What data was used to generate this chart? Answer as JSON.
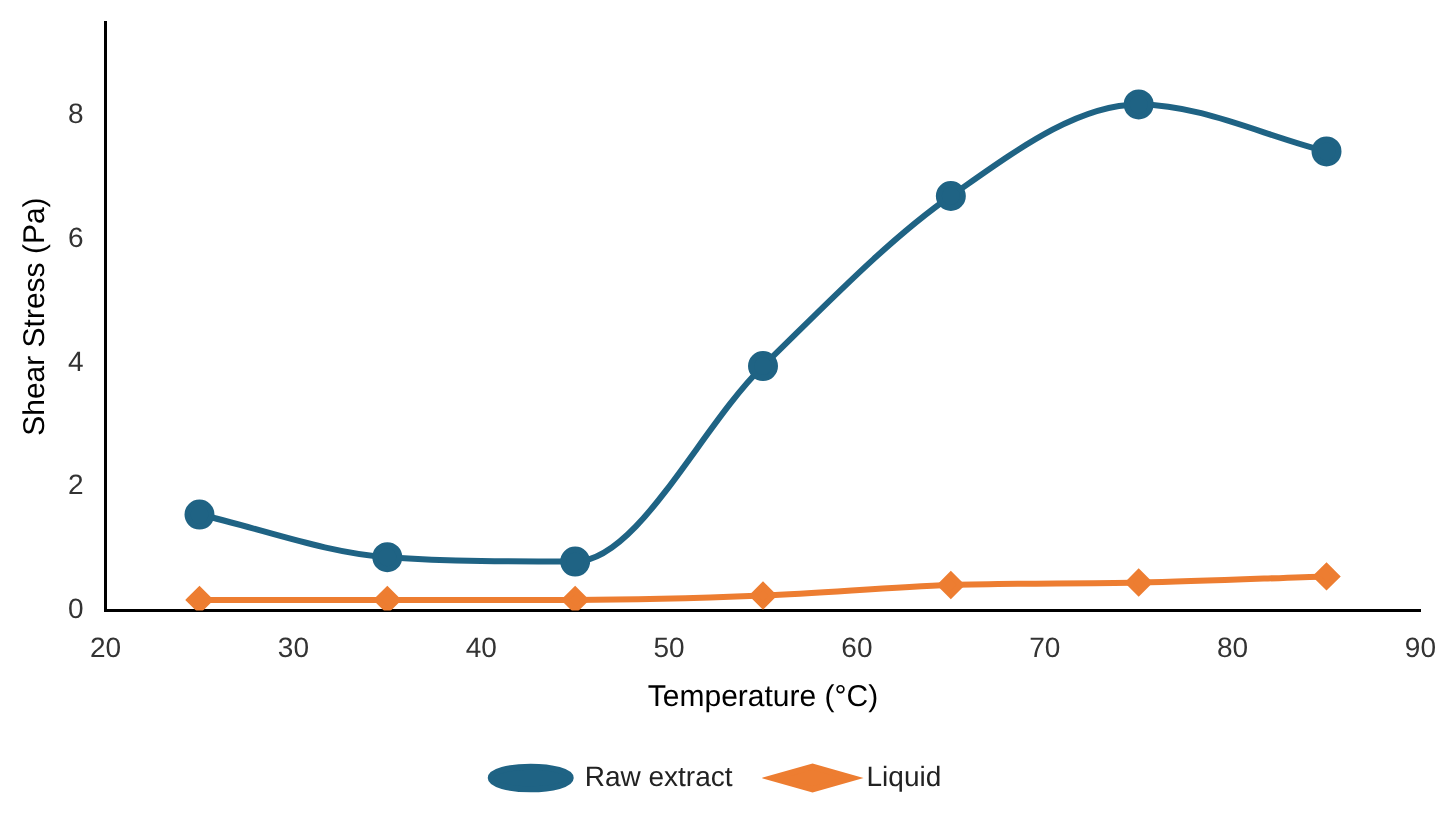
{
  "chart_data": {
    "type": "line",
    "xlabel": "Temperature (°C)",
    "ylabel": "Shear Stress (Pa)",
    "x": [
      25,
      35,
      45,
      55,
      65,
      75,
      85
    ],
    "series": [
      {
        "name": "Raw extract",
        "color": "#1f6384",
        "marker": "circle",
        "values": [
          1.55,
          0.86,
          0.79,
          3.95,
          6.7,
          8.18,
          7.42
        ]
      },
      {
        "name": "Liquid",
        "color": "#ed7d31",
        "marker": "diamond",
        "values": [
          0.17,
          0.17,
          0.17,
          0.24,
          0.41,
          0.45,
          0.55
        ]
      }
    ],
    "xlim": [
      20,
      90
    ],
    "xticks": [
      20,
      30,
      40,
      50,
      60,
      70,
      80,
      90
    ],
    "ylim": [
      0,
      9.5
    ],
    "yticks": [
      0,
      2,
      4,
      6,
      8
    ],
    "grid": false,
    "legend": "bottom"
  }
}
